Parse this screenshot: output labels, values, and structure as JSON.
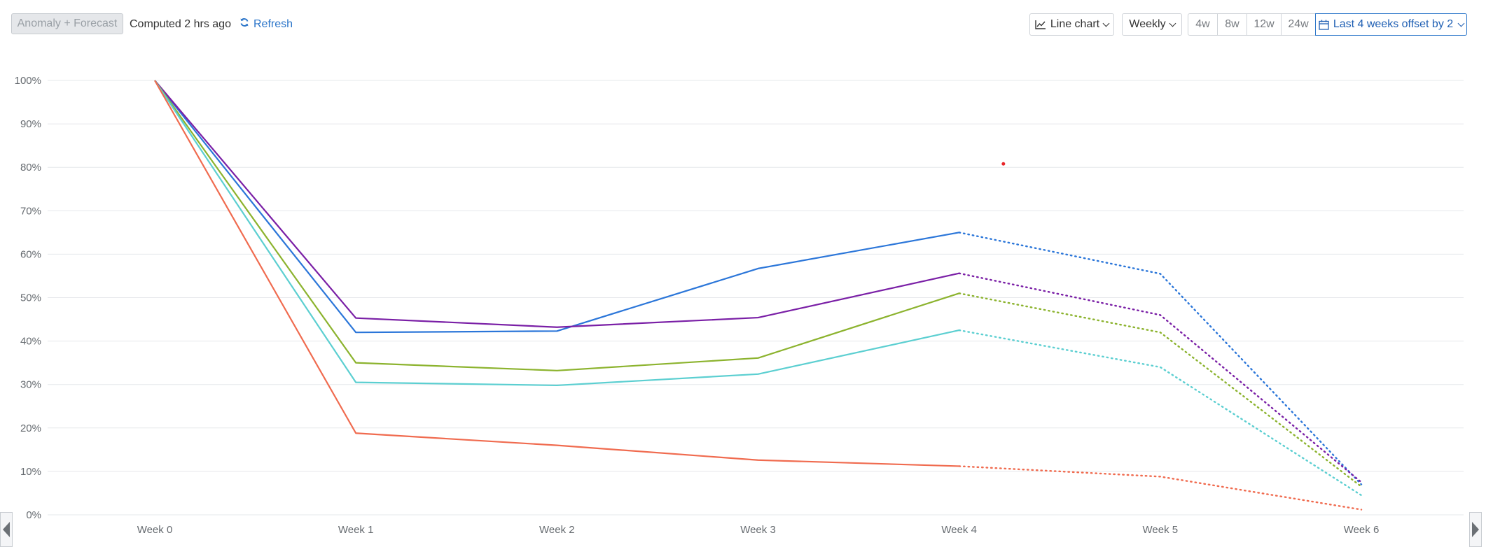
{
  "toolbar": {
    "anomaly_label": "Anomaly + Forecast",
    "computed_text": "Computed 2 hrs ago",
    "refresh_label": "Refresh",
    "chart_type_label": "Line chart",
    "interval_label": "Weekly",
    "ranges": [
      "4w",
      "8w",
      "12w",
      "24w"
    ],
    "date_range_label": "Last 4 weeks offset by 2"
  },
  "colors": {
    "accent": "#2b75c9",
    "grid": "#e6e8eb",
    "anomaly_dot": "#e8262a"
  },
  "chart_data": {
    "type": "line",
    "x": [
      "Week 0",
      "Week 1",
      "Week 2",
      "Week 3",
      "Week 4",
      "Week 5",
      "Week 6"
    ],
    "ylim": [
      0,
      100
    ],
    "yticks": [
      "0%",
      "10%",
      "20%",
      "30%",
      "40%",
      "50%",
      "60%",
      "70%",
      "80%",
      "90%",
      "100%"
    ],
    "solid_through_index": 4,
    "grid": true,
    "series": [
      {
        "color": "#2b76d9",
        "values": [
          100,
          42,
          42.3,
          56.7,
          65,
          55.5,
          7
        ]
      },
      {
        "color": "#7a1fa6",
        "values": [
          100,
          45.3,
          43.2,
          45.4,
          55.6,
          46,
          7.5
        ]
      },
      {
        "color": "#8cb32e",
        "values": [
          100,
          35,
          33.2,
          36.1,
          51,
          42,
          6.5
        ]
      },
      {
        "color": "#5ccfd1",
        "values": [
          100,
          30.5,
          29.8,
          32.4,
          42.5,
          34,
          4.5
        ]
      },
      {
        "color": "#f06b4f",
        "values": [
          100,
          18.8,
          16,
          12.6,
          11.2,
          8.8,
          1.2
        ]
      }
    ],
    "anomalies": [
      {
        "x": 4.22,
        "y": 80.8
      }
    ]
  }
}
